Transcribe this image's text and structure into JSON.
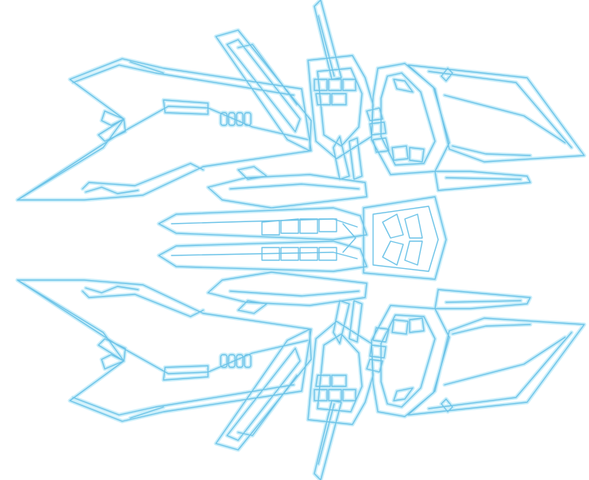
{
  "scene": {
    "subject": "ship-sprite",
    "colors": {
      "background": "#ffffff",
      "outline": "#6fc4e8",
      "glow": "#c9eefa"
    }
  }
}
